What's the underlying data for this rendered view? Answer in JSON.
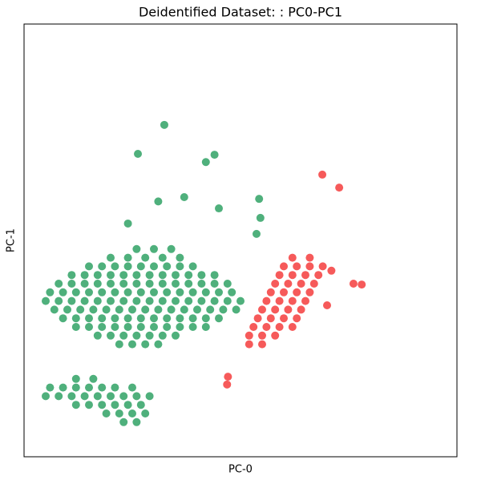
{
  "chart_data": {
    "type": "scatter",
    "title": "Deidentified Dataset: : PC0-PC1",
    "x_label": "PC-0",
    "y_label": "PC-1",
    "xlim": [
      0,
      100
    ],
    "ylim": [
      0,
      100
    ],
    "series": [
      {
        "color": "#4fb07c",
        "x": [
          26,
          30,
          34,
          20,
          24,
          28,
          32,
          36,
          15,
          18,
          21,
          24,
          27,
          30,
          33,
          36,
          39,
          11,
          14,
          17,
          20,
          23,
          26,
          29,
          32,
          35,
          38,
          41,
          44,
          8,
          11,
          14,
          17,
          20,
          23,
          26,
          29,
          32,
          35,
          38,
          41,
          44,
          47,
          6,
          9,
          12,
          15,
          18,
          21,
          24,
          27,
          30,
          33,
          36,
          39,
          42,
          45,
          48,
          5,
          8,
          11,
          14,
          17,
          20,
          23,
          26,
          29,
          32,
          35,
          38,
          41,
          44,
          47,
          50,
          7,
          10,
          13,
          16,
          19,
          22,
          25,
          28,
          31,
          34,
          37,
          40,
          43,
          46,
          49,
          9,
          12,
          15,
          18,
          21,
          24,
          27,
          30,
          33,
          36,
          39,
          42,
          45,
          12,
          15,
          18,
          21,
          24,
          27,
          30,
          33,
          36,
          39,
          42,
          17,
          20,
          23,
          26,
          29,
          32,
          35,
          22,
          25,
          28,
          31,
          12,
          16,
          6,
          9,
          12,
          15,
          18,
          21,
          25,
          5,
          8,
          11,
          14,
          17,
          20,
          23,
          26,
          29,
          12,
          15,
          18,
          21,
          24,
          27,
          19,
          22,
          25,
          28,
          23,
          26,
          32.4,
          26.3,
          44,
          42,
          37,
          31,
          54.3,
          45,
          54.6,
          24,
          53.7
        ],
        "values": [
          48,
          48,
          48,
          46,
          46,
          46,
          46,
          46,
          44,
          44,
          44,
          44,
          44,
          44,
          44,
          44,
          44,
          42,
          42,
          42,
          42,
          42,
          42,
          42,
          42,
          42,
          42,
          42,
          42,
          40,
          40,
          40,
          40,
          40,
          40,
          40,
          40,
          40,
          40,
          40,
          40,
          40,
          40,
          38,
          38,
          38,
          38,
          38,
          38,
          38,
          38,
          38,
          38,
          38,
          38,
          38,
          38,
          38,
          36,
          36,
          36,
          36,
          36,
          36,
          36,
          36,
          36,
          36,
          36,
          36,
          36,
          36,
          36,
          36,
          34,
          34,
          34,
          34,
          34,
          34,
          34,
          34,
          34,
          34,
          34,
          34,
          34,
          34,
          34,
          32,
          32,
          32,
          32,
          32,
          32,
          32,
          32,
          32,
          32,
          32,
          32,
          32,
          30,
          30,
          30,
          30,
          30,
          30,
          30,
          30,
          30,
          30,
          30,
          28,
          28,
          28,
          28,
          28,
          28,
          28,
          26,
          26,
          26,
          26,
          18,
          18,
          16,
          16,
          16,
          16,
          16,
          16,
          16,
          14,
          14,
          14,
          14,
          14,
          14,
          14,
          14,
          14,
          12,
          12,
          12,
          12,
          12,
          12,
          10,
          10,
          10,
          10,
          8,
          8,
          76.7,
          70,
          69.8,
          68.1,
          60,
          59,
          59.6,
          57.4,
          55.2,
          53.9,
          51.5
        ]
      },
      {
        "color": "#f65a5a",
        "x": [
          62,
          66,
          60,
          63,
          66,
          69,
          59,
          62,
          65,
          68,
          58,
          61,
          64,
          67,
          57,
          60,
          63,
          66,
          56,
          59,
          62,
          65,
          55,
          58,
          61,
          64,
          54,
          57,
          60,
          63,
          53,
          56,
          59,
          62,
          52,
          55,
          58,
          52,
          55,
          68.9,
          72.8,
          76.1,
          78,
          46.9,
          47.1,
          71,
          70
        ],
        "values": [
          46,
          46,
          44,
          44,
          44,
          44,
          42,
          42,
          42,
          42,
          40,
          40,
          40,
          40,
          38,
          38,
          38,
          38,
          36,
          36,
          36,
          36,
          34,
          34,
          34,
          34,
          32,
          32,
          32,
          32,
          30,
          30,
          30,
          30,
          28,
          28,
          28,
          26,
          26,
          65.2,
          62.2,
          40,
          39.8,
          16.7,
          18.5,
          43,
          35
        ]
      }
    ]
  }
}
